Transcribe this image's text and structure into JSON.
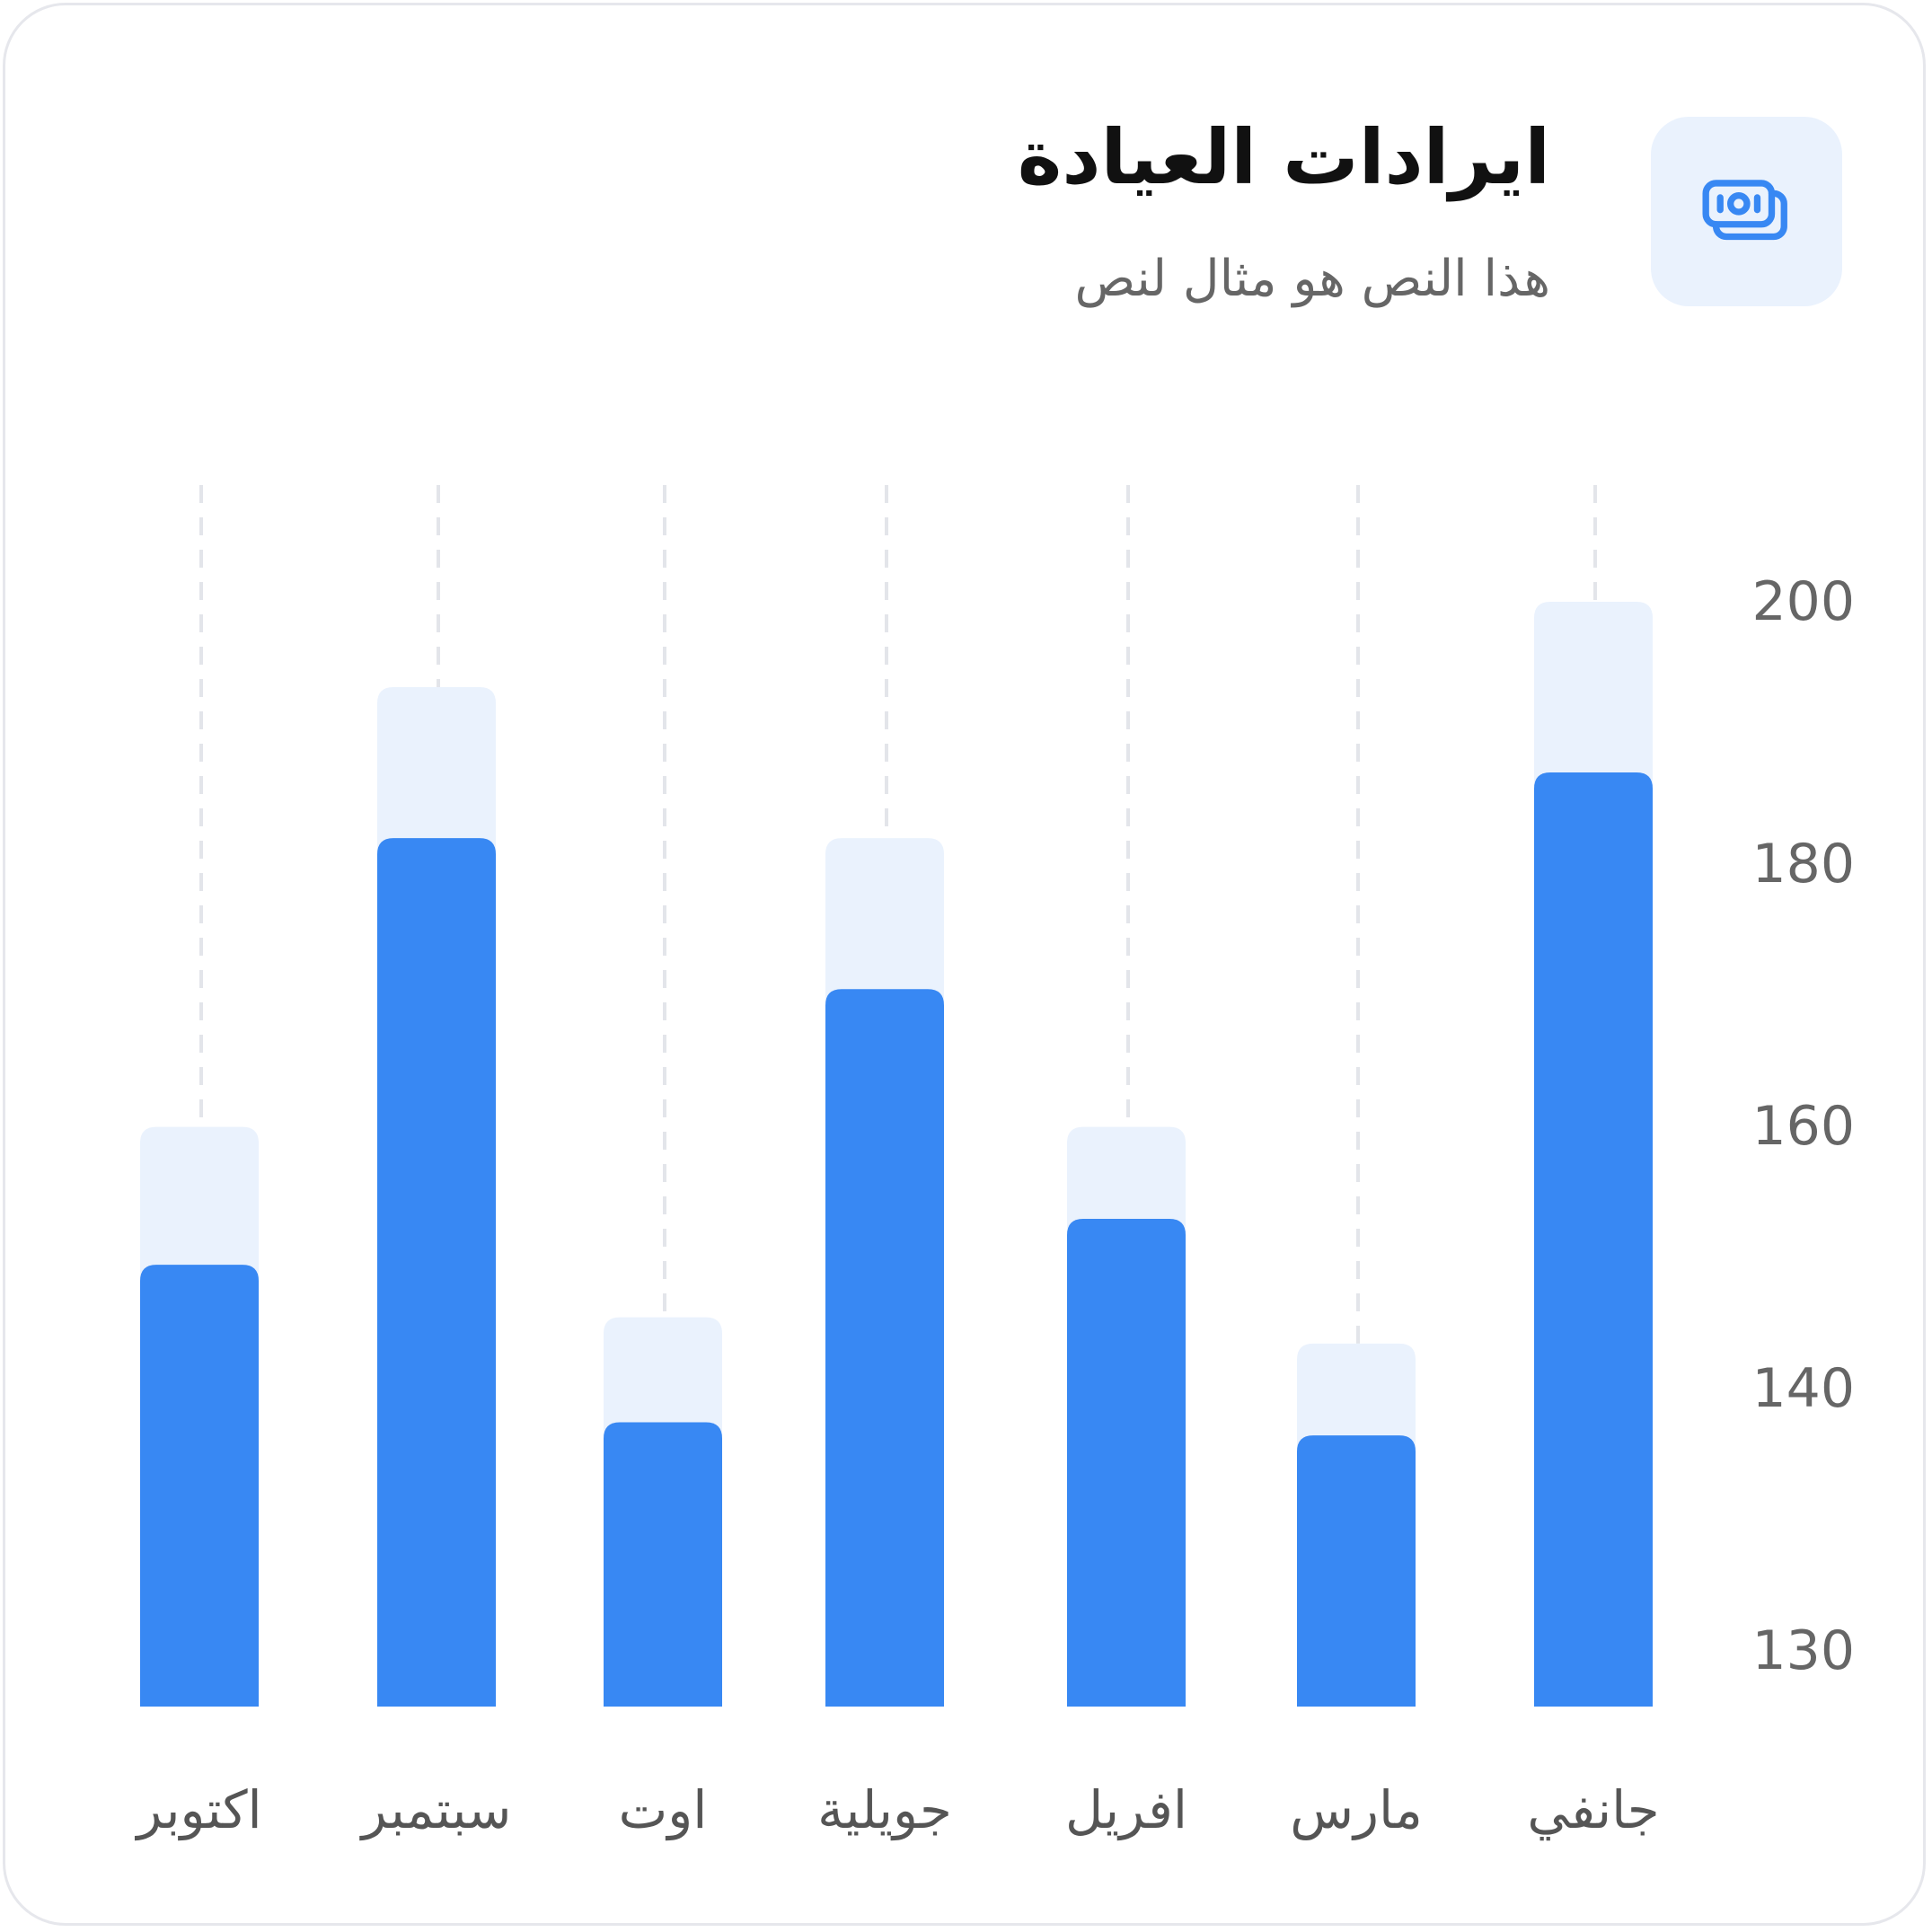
{
  "header": {
    "title": "ايرادات العيادة",
    "subtitle": "هذا النص هو مثال لنص",
    "icon": "cash-banknote-icon"
  },
  "colors": {
    "accent": "#3888f3",
    "light": "#eaf2fd",
    "grid": "#e3e5ea",
    "text": "#666666"
  },
  "chart_data": {
    "type": "bar",
    "direction": "rtl",
    "categories": [
      "جانفي",
      "مارس",
      "افريل",
      "جويلية",
      "اوت",
      "سبتمبر",
      "اكتوبر"
    ],
    "series": [
      {
        "values": [
          187,
          136.5,
          153,
          170.5,
          137.5,
          182,
          149.5
        ]
      },
      {
        "values": [
          200,
          143.5,
          160,
          182,
          145.5,
          193.5,
          160
        ]
      }
    ],
    "y_ticks": [
      "200",
      "180",
      "160",
      "140",
      "130"
    ],
    "y_axis_position": "right",
    "grid": "vertical dashed",
    "stacked_overlay": true
  }
}
